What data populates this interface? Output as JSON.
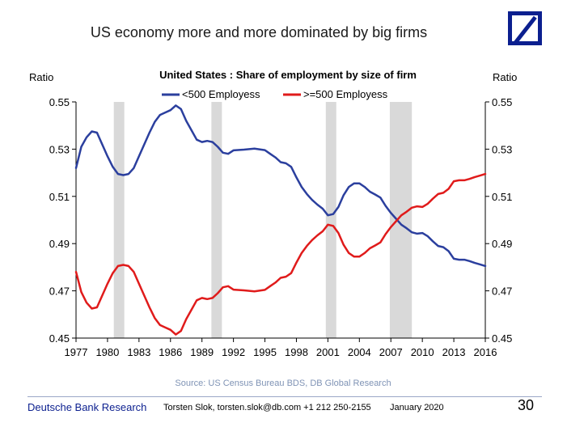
{
  "slide": {
    "title": "US economy more and more dominated by big firms",
    "source": "Source: US Census Bureau BDS, DB Global Research"
  },
  "footer": {
    "brand": "Deutsche Bank Research",
    "author": "Torsten Slok, torsten.slok@db.com +1 212 250-2155",
    "date": "January 2020",
    "page": "30"
  },
  "colors": {
    "logo": "#0b1f8f",
    "series_small": "#2b3f9e",
    "series_large": "#e01b1b",
    "recession": "#d9d9d9"
  },
  "chart_data": {
    "type": "line",
    "title": "United States : Share of employment by size of firm",
    "ylabel_left": "Ratio",
    "ylabel_right": "Ratio",
    "ylim": [
      0.45,
      0.55
    ],
    "yticks": [
      "0.55",
      "0.53",
      "0.51",
      "0.49",
      "0.47",
      "0.45"
    ],
    "xlim": [
      1977,
      2016
    ],
    "xticks": [
      "1977",
      "1980",
      "1983",
      "1986",
      "1989",
      "1992",
      "1995",
      "1998",
      "2001",
      "2004",
      "2007",
      "2010",
      "2013",
      "2016"
    ],
    "legend_position": "top-center",
    "recession_shading": [
      [
        1980.6,
        1981.6
      ],
      [
        1989.9,
        1990.9
      ],
      [
        2000.8,
        2001.8
      ],
      [
        2006.9,
        2009.0
      ]
    ],
    "series": [
      {
        "name": "<500 Employess",
        "color": "#2b3f9e",
        "points": [
          [
            1977,
            0.522
          ],
          [
            1977.5,
            0.531
          ],
          [
            1978,
            0.535
          ],
          [
            1978.5,
            0.5375
          ],
          [
            1979,
            0.537
          ],
          [
            1979.5,
            0.532
          ],
          [
            1980,
            0.527
          ],
          [
            1980.5,
            0.5225
          ],
          [
            1981,
            0.5195
          ],
          [
            1981.5,
            0.519
          ],
          [
            1982,
            0.5195
          ],
          [
            1982.5,
            0.522
          ],
          [
            1983,
            0.527
          ],
          [
            1983.5,
            0.532
          ],
          [
            1984,
            0.537
          ],
          [
            1984.5,
            0.5415
          ],
          [
            1985,
            0.5445
          ],
          [
            1985.5,
            0.5455
          ],
          [
            1986,
            0.5465
          ],
          [
            1986.5,
            0.5485
          ],
          [
            1987,
            0.547
          ],
          [
            1987.5,
            0.542
          ],
          [
            1988,
            0.538
          ],
          [
            1988.5,
            0.534
          ],
          [
            1989,
            0.533
          ],
          [
            1989.5,
            0.5335
          ],
          [
            1990,
            0.533
          ],
          [
            1990.5,
            0.531
          ],
          [
            1991,
            0.5285
          ],
          [
            1991.5,
            0.528
          ],
          [
            1992,
            0.5295
          ],
          [
            1993,
            0.5298
          ],
          [
            1994,
            0.5302
          ],
          [
            1995,
            0.5296
          ],
          [
            1995.5,
            0.528
          ],
          [
            1996,
            0.5265
          ],
          [
            1996.5,
            0.5245
          ],
          [
            1997,
            0.524
          ],
          [
            1997.5,
            0.5225
          ],
          [
            1998,
            0.518
          ],
          [
            1998.5,
            0.514
          ],
          [
            1999,
            0.511
          ],
          [
            1999.5,
            0.5085
          ],
          [
            2000,
            0.5065
          ],
          [
            2000.5,
            0.5048
          ],
          [
            2001,
            0.502
          ],
          [
            2001.5,
            0.5025
          ],
          [
            2002,
            0.5055
          ],
          [
            2002.5,
            0.5105
          ],
          [
            2003,
            0.514
          ],
          [
            2003.5,
            0.5155
          ],
          [
            2004,
            0.5155
          ],
          [
            2004.5,
            0.514
          ],
          [
            2005,
            0.512
          ],
          [
            2005.5,
            0.5108
          ],
          [
            2006,
            0.5095
          ],
          [
            2006.5,
            0.506
          ],
          [
            2007,
            0.503
          ],
          [
            2007.5,
            0.5005
          ],
          [
            2008,
            0.498
          ],
          [
            2008.5,
            0.4965
          ],
          [
            2009,
            0.4948
          ],
          [
            2009.5,
            0.4942
          ],
          [
            2010,
            0.4945
          ],
          [
            2010.5,
            0.4932
          ],
          [
            2011,
            0.491
          ],
          [
            2011.5,
            0.489
          ],
          [
            2012,
            0.4885
          ],
          [
            2012.5,
            0.4868
          ],
          [
            2013,
            0.4836
          ],
          [
            2013.5,
            0.4832
          ],
          [
            2014,
            0.4832
          ],
          [
            2014.5,
            0.4826
          ],
          [
            2015,
            0.4818
          ],
          [
            2015.5,
            0.4812
          ],
          [
            2016,
            0.4805
          ]
        ]
      },
      {
        "name": ">=500 Employess",
        "color": "#e01b1b",
        "points": [
          [
            1977,
            0.478
          ],
          [
            1977.5,
            0.4695
          ],
          [
            1978,
            0.465
          ],
          [
            1978.5,
            0.4625
          ],
          [
            1979,
            0.463
          ],
          [
            1979.5,
            0.468
          ],
          [
            1980,
            0.473
          ],
          [
            1980.5,
            0.4775
          ],
          [
            1981,
            0.4805
          ],
          [
            1981.5,
            0.481
          ],
          [
            1982,
            0.4805
          ],
          [
            1982.5,
            0.478
          ],
          [
            1983,
            0.473
          ],
          [
            1983.5,
            0.468
          ],
          [
            1984,
            0.463
          ],
          [
            1984.5,
            0.4585
          ],
          [
            1985,
            0.4555
          ],
          [
            1985.5,
            0.4545
          ],
          [
            1986,
            0.4535
          ],
          [
            1986.5,
            0.4515
          ],
          [
            1987,
            0.453
          ],
          [
            1987.5,
            0.458
          ],
          [
            1988,
            0.462
          ],
          [
            1988.5,
            0.466
          ],
          [
            1989,
            0.467
          ],
          [
            1989.5,
            0.4665
          ],
          [
            1990,
            0.467
          ],
          [
            1990.5,
            0.469
          ],
          [
            1991,
            0.4715
          ],
          [
            1991.5,
            0.472
          ],
          [
            1992,
            0.4705
          ],
          [
            1993,
            0.4702
          ],
          [
            1994,
            0.4698
          ],
          [
            1995,
            0.4704
          ],
          [
            1995.5,
            0.472
          ],
          [
            1996,
            0.4735
          ],
          [
            1996.5,
            0.4755
          ],
          [
            1997,
            0.476
          ],
          [
            1997.5,
            0.4775
          ],
          [
            1998,
            0.482
          ],
          [
            1998.5,
            0.486
          ],
          [
            1999,
            0.489
          ],
          [
            1999.5,
            0.4915
          ],
          [
            2000,
            0.4935
          ],
          [
            2000.5,
            0.4952
          ],
          [
            2001,
            0.498
          ],
          [
            2001.5,
            0.4975
          ],
          [
            2002,
            0.4945
          ],
          [
            2002.5,
            0.4895
          ],
          [
            2003,
            0.486
          ],
          [
            2003.5,
            0.4845
          ],
          [
            2004,
            0.4845
          ],
          [
            2004.5,
            0.486
          ],
          [
            2005,
            0.488
          ],
          [
            2005.5,
            0.4892
          ],
          [
            2006,
            0.4905
          ],
          [
            2006.5,
            0.494
          ],
          [
            2007,
            0.497
          ],
          [
            2007.5,
            0.4995
          ],
          [
            2008,
            0.502
          ],
          [
            2008.5,
            0.5035
          ],
          [
            2009,
            0.5052
          ],
          [
            2009.5,
            0.5058
          ],
          [
            2010,
            0.5055
          ],
          [
            2010.5,
            0.5068
          ],
          [
            2011,
            0.509
          ],
          [
            2011.5,
            0.511
          ],
          [
            2012,
            0.5115
          ],
          [
            2012.5,
            0.5132
          ],
          [
            2013,
            0.5164
          ],
          [
            2013.5,
            0.5168
          ],
          [
            2014,
            0.5168
          ],
          [
            2014.5,
            0.5174
          ],
          [
            2015,
            0.5182
          ],
          [
            2015.5,
            0.5188
          ],
          [
            2016,
            0.5195
          ]
        ]
      }
    ]
  }
}
